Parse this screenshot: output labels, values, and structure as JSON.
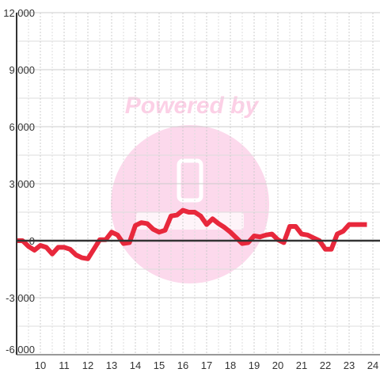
{
  "chart_data": {
    "type": "line",
    "watermark": "Powered by",
    "x": [
      9,
      9.25,
      9.5,
      9.75,
      10,
      10.25,
      10.5,
      10.75,
      11,
      11.25,
      11.5,
      11.75,
      12,
      12.25,
      12.5,
      12.75,
      13,
      13.25,
      13.5,
      13.75,
      14,
      14.25,
      14.5,
      14.75,
      15,
      15.25,
      15.5,
      15.75,
      16,
      16.25,
      16.5,
      16.75,
      17,
      17.25,
      17.5,
      17.75,
      18,
      18.25,
      18.5,
      18.75,
      19,
      19.25,
      19.5,
      19.75,
      20,
      20.25,
      20.5,
      20.75,
      21,
      21.25,
      21.5,
      21.75,
      22,
      22.25,
      22.5,
      22.75,
      23,
      23.25,
      23.5,
      23.75
    ],
    "series": [
      {
        "color": "#e8283c",
        "values": [
          0,
          0,
          -300,
          -500,
          -250,
          -350,
          -700,
          -350,
          -350,
          -450,
          -750,
          -900,
          -950,
          -450,
          50,
          50,
          450,
          300,
          -150,
          -100,
          800,
          950,
          900,
          600,
          450,
          550,
          1300,
          1350,
          1600,
          1500,
          1500,
          1300,
          850,
          1150,
          900,
          700,
          450,
          150,
          -150,
          -100,
          250,
          200,
          300,
          350,
          50,
          -100,
          750,
          750,
          350,
          300,
          150,
          0,
          -450,
          -450,
          350,
          500,
          850,
          850,
          850,
          850
        ]
      }
    ],
    "xlim": [
      9,
      24.3
    ],
    "xticks": [
      10,
      11,
      12,
      13,
      14,
      15,
      16,
      17,
      18,
      19,
      20,
      21,
      22,
      23,
      24
    ],
    "ylim": [
      -6000,
      12000
    ],
    "yticks": [
      {
        "value": -6000,
        "label": "-6,000"
      },
      {
        "value": -3000,
        "label": "-3,000"
      },
      0,
      {
        "value": 3000,
        "label": "3,000"
      },
      {
        "value": 6000,
        "label": "6,000"
      },
      {
        "value": 9000,
        "label": "9,000"
      },
      {
        "value": 12000,
        "label": "12,000"
      }
    ],
    "grid": true
  }
}
